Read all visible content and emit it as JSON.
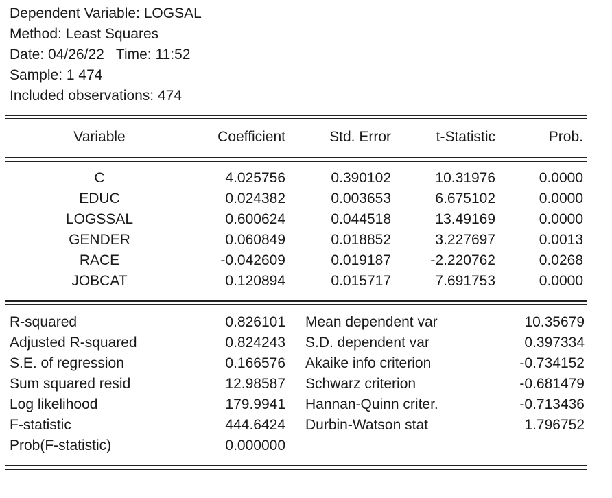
{
  "header": {
    "lines": [
      "Dependent Variable: LOGSAL",
      "Method: Least Squares",
      "Date: 04/26/22   Time: 11:52",
      "Sample: 1 474",
      "Included observations: 474"
    ]
  },
  "table": {
    "columns": [
      "Variable",
      "Coefficient",
      "Std. Error",
      "t-Statistic",
      "Prob."
    ],
    "rows": [
      [
        "C",
        "4.025756",
        "0.390102",
        "10.31976",
        "0.0000"
      ],
      [
        "EDUC",
        "0.024382",
        "0.003653",
        "6.675102",
        "0.0000"
      ],
      [
        "LOGSSAL",
        "0.600624",
        "0.044518",
        "13.49169",
        "0.0000"
      ],
      [
        "GENDER",
        "0.060849",
        "0.018852",
        "3.227697",
        "0.0013"
      ],
      [
        "RACE",
        "-0.042609",
        "0.019187",
        "-2.220762",
        "0.0268"
      ],
      [
        "JOBCAT",
        "0.120894",
        "0.015717",
        "7.691753",
        "0.0000"
      ]
    ]
  },
  "stats": {
    "rows": [
      [
        "R-squared",
        "0.826101",
        "Mean dependent var",
        "10.35679"
      ],
      [
        "Adjusted R-squared",
        "0.824243",
        "S.D. dependent var",
        "0.397334"
      ],
      [
        "S.E. of regression",
        "0.166576",
        "Akaike info criterion",
        "-0.734152"
      ],
      [
        "Sum squared resid",
        "12.98587",
        "Schwarz criterion",
        "-0.681479"
      ],
      [
        "Log likelihood",
        "179.9941",
        "Hannan-Quinn criter.",
        "-0.713436"
      ],
      [
        "F-statistic",
        "444.6424",
        "Durbin-Watson stat",
        "1.796752"
      ],
      [
        "Prob(F-statistic)",
        "0.000000"
      ]
    ]
  }
}
